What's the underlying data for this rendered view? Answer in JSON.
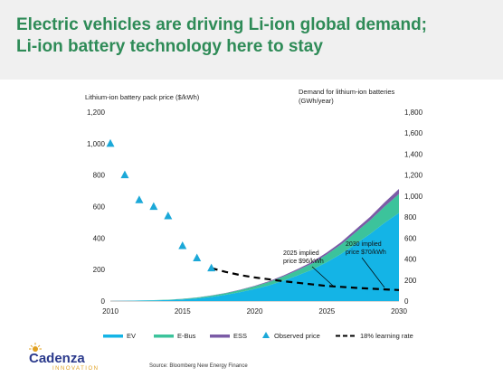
{
  "header": {
    "title_line1": "Electric vehicles are driving Li-ion global demand;",
    "title_line2": "Li-ion battery technology here to stay"
  },
  "colors": {
    "ev": "#14b4e6",
    "ebus": "#3cc39b",
    "ess": "#7b5ba6",
    "observed": "#1ba8d8",
    "learning": "#000000",
    "title": "#2e8b57",
    "header_bg": "#f0f0f0"
  },
  "chart_data": {
    "type": "area",
    "ylabel_left": "Lithium-ion battery pack price ($/kWh)",
    "ylabel_right_line1": "Demand for lithium-ion batteries",
    "ylabel_right_line2": "(GWh/year)",
    "xlim": [
      2010,
      2030
    ],
    "ylim_left": [
      0,
      1200
    ],
    "ylim_right": [
      0,
      1800
    ],
    "x_ticks": [
      "2010",
      "2015",
      "2020",
      "2025",
      "2030"
    ],
    "y_left_ticks": [
      "0",
      "200",
      "400",
      "600",
      "800",
      "1,000",
      "1,200"
    ],
    "y_right_ticks": [
      "0",
      "200",
      "400",
      "600",
      "800",
      "1,000",
      "1,200",
      "1,400",
      "1,600",
      "1,800"
    ],
    "demand_x": [
      2010,
      2011,
      2012,
      2013,
      2014,
      2015,
      2016,
      2017,
      2018,
      2019,
      2020,
      2021,
      2022,
      2023,
      2024,
      2025,
      2026,
      2027,
      2028,
      2029,
      2030
    ],
    "series": [
      {
        "name": "EV",
        "axis": "right",
        "values": [
          0,
          2,
          4,
          7,
          10,
          15,
          25,
          40,
          60,
          85,
          115,
          150,
          195,
          245,
          300,
          370,
          450,
          545,
          640,
          745,
          840
        ]
      },
      {
        "name": "E-Bus",
        "axis": "right",
        "values": [
          0,
          0,
          1,
          2,
          3,
          5,
          8,
          12,
          15,
          20,
          25,
          32,
          40,
          50,
          60,
          75,
          90,
          110,
          130,
          155,
          180
        ]
      },
      {
        "name": "ESS",
        "axis": "right",
        "values": [
          0,
          0,
          0,
          0,
          0,
          1,
          1,
          2,
          3,
          4,
          5,
          7,
          9,
          12,
          15,
          18,
          22,
          27,
          32,
          40,
          48
        ]
      }
    ],
    "observed_price": {
      "name": "Observed price",
      "x": [
        2010,
        2011,
        2012,
        2013,
        2014,
        2015,
        2016,
        2017
      ],
      "y": [
        1000,
        800,
        642,
        599,
        540,
        350,
        273,
        209
      ]
    },
    "learning_rate": {
      "name": "18% learning rate",
      "x": [
        2017,
        2018,
        2019,
        2020,
        2021,
        2022,
        2023,
        2024,
        2025,
        2026,
        2027,
        2028,
        2029,
        2030
      ],
      "y": [
        209,
        185,
        165,
        150,
        138,
        126,
        116,
        106,
        96,
        90,
        84,
        79,
        74,
        70
      ]
    },
    "annotations": [
      {
        "line1": "2025 implied",
        "line2": "price $96/kWh",
        "x": 2025,
        "y": 96
      },
      {
        "line1": "2030 implied",
        "line2": "price $70/kWh",
        "x": 2030,
        "y": 70
      }
    ],
    "legend": [
      "EV",
      "E-Bus",
      "ESS",
      "Observed price",
      "18% learning rate"
    ],
    "legend_position": "bottom"
  },
  "footer": {
    "logo_text": "Cadenza",
    "logo_sub": "INNOVATION",
    "source": "Source: Bloomberg New Energy Finance"
  }
}
